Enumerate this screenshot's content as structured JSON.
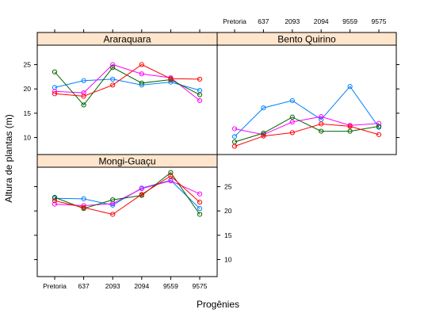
{
  "chart_data": {
    "type": "line",
    "xlabel": "Progênies",
    "ylabel": "Altura de plantas (m)",
    "categories": [
      "Pretoria",
      "637",
      "2093",
      "2094",
      "9559",
      "9575"
    ],
    "yticks": [
      10,
      15,
      20,
      25
    ],
    "ylim": [
      6.5,
      29
    ],
    "grid": false,
    "colors": [
      "#0080ff",
      "#ff00ff",
      "#006400",
      "#ff0000"
    ],
    "panels": [
      {
        "title": "Araraquara",
        "series": [
          {
            "values": [
              20.3,
              21.7,
              22.0,
              20.8,
              21.4,
              19.7
            ]
          },
          {
            "values": [
              19.5,
              19.2,
              25.0,
              23.1,
              22.3,
              17.6
            ]
          },
          {
            "values": [
              23.5,
              16.7,
              24.4,
              21.2,
              21.9,
              18.8
            ]
          },
          {
            "values": [
              19.0,
              18.5,
              20.8,
              25.0,
              22.1,
              22.0
            ]
          }
        ]
      },
      {
        "title": "Bento Quirino",
        "series": [
          {
            "values": [
              10.2,
              16.1,
              17.6,
              13.7,
              20.5,
              12.1
            ]
          },
          {
            "values": [
              11.8,
              10.6,
              13.2,
              14.3,
              12.5,
              12.9
            ]
          },
          {
            "values": [
              9.1,
              10.9,
              14.2,
              11.3,
              11.3,
              12.3
            ]
          },
          {
            "values": [
              8.2,
              10.3,
              11.0,
              12.8,
              12.3,
              10.6
            ]
          }
        ]
      },
      {
        "title": "Mongi-Guaçu",
        "series": [
          {
            "values": [
              22.6,
              22.5,
              21.2,
              24.7,
              26.3,
              20.5
            ]
          },
          {
            "values": [
              21.4,
              21.1,
              21.5,
              24.6,
              26.2,
              23.5
            ]
          },
          {
            "values": [
              22.8,
              20.5,
              22.3,
              23.2,
              27.9,
              19.3
            ]
          },
          {
            "values": [
              22.1,
              20.7,
              19.3,
              23.4,
              27.2,
              21.8
            ]
          }
        ]
      }
    ]
  }
}
